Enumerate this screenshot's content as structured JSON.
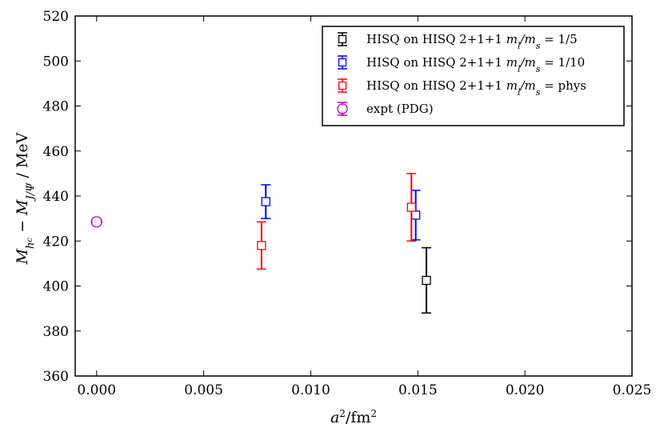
{
  "chart_data": {
    "type": "scatter",
    "title": "",
    "xlabel_base": "a",
    "xlabel_sup": "2",
    "xlabel_rest": "/fm",
    "xlabel_sup2": "2",
    "ylabel_m1": "M",
    "ylabel_sub1": "h",
    "ylabel_subsub1": "c",
    "ylabel_minus": " − M",
    "ylabel_sub2": "J/Ψ",
    "ylabel_rest": " / MeV",
    "xlim": [
      -0.001,
      0.025
    ],
    "ylim": [
      360,
      520
    ],
    "xticks": [
      0.0,
      0.005,
      0.01,
      0.015,
      0.02,
      0.025
    ],
    "xtick_labels": [
      "0.000",
      "0.005",
      "0.010",
      "0.015",
      "0.020",
      "0.025"
    ],
    "yticks": [
      360,
      380,
      400,
      420,
      440,
      460,
      480,
      500,
      520
    ],
    "ytick_labels": [
      "360",
      "380",
      "400",
      "420",
      "440",
      "460",
      "480",
      "500",
      "520"
    ],
    "grid": false,
    "legend_position": "top-right",
    "series": [
      {
        "name": "HISQ on HISQ 2+1+1 m_l/m_s = 1/5",
        "legend_text": "HISQ on HISQ 2+1+1 ",
        "legend_math": "m",
        "legend_sub": "l",
        "legend_mid": "/m",
        "legend_sub2": "s",
        "legend_end": " = 1/5",
        "color": "#000000",
        "marker": "square",
        "points": [
          {
            "x": 0.0154,
            "y": 402.5,
            "yerr": 14.5
          }
        ]
      },
      {
        "name": "HISQ on HISQ 2+1+1 m_l/m_s = 1/10",
        "legend_text": "HISQ on HISQ 2+1+1 ",
        "legend_math": "m",
        "legend_sub": "l",
        "legend_mid": "/m",
        "legend_sub2": "s",
        "legend_end": " = 1/10",
        "color": "#0000ff",
        "marker": "square",
        "points": [
          {
            "x": 0.0079,
            "y": 437.5,
            "yerr": 7.5
          },
          {
            "x": 0.0149,
            "y": 431.5,
            "yerr": 11
          }
        ]
      },
      {
        "name": "HISQ on HISQ 2+1+1 m_l/m_s = phys",
        "legend_text": "HISQ on HISQ 2+1+1 ",
        "legend_math": "m",
        "legend_sub": "l",
        "legend_mid": "/m",
        "legend_sub2": "s",
        "legend_end": " = phys",
        "color": "#ff0000",
        "marker": "square",
        "points": [
          {
            "x": 0.0077,
            "y": 418,
            "yerr": 10.5
          },
          {
            "x": 0.0147,
            "y": 435,
            "yerr": 15
          }
        ]
      },
      {
        "name": "expt (PDG)",
        "legend_text": "expt (PDG)",
        "legend_math": "",
        "legend_sub": "",
        "legend_mid": "",
        "legend_sub2": "",
        "legend_end": "",
        "color": "#bf00bf",
        "marker": "circle",
        "points": [
          {
            "x": 0.0,
            "y": 428.5,
            "yerr": 0.3
          }
        ]
      }
    ]
  }
}
